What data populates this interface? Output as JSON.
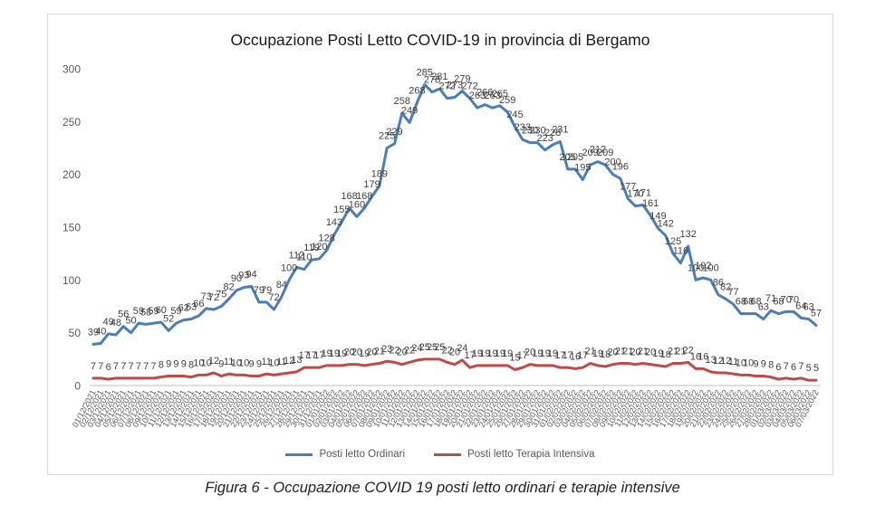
{
  "chart_data": {
    "type": "line",
    "title": "Occupazione Posti Letto COVID-19 in provincia di Bergamo",
    "ylim": [
      0,
      300
    ],
    "yticks": [
      0,
      50,
      100,
      150,
      200,
      250,
      300
    ],
    "grid": false,
    "legend": "bottom",
    "categories": [
      "01/12/2021",
      "02/12/2021",
      "03/12/2021",
      "04/12/2021",
      "05/12/2021",
      "06/12/2021",
      "07/12/2021",
      "08/12/2021",
      "09/12/2021",
      "10/12/2021",
      "11/12/2021",
      "12/12/2021",
      "13/12/2021",
      "14/12/2021",
      "15/12/2021",
      "16/12/2021",
      "17/12/2021",
      "18/12/2021",
      "19/12/2021",
      "20/12/2021",
      "21/12/2021",
      "22/12/2021",
      "23/12/2021",
      "24/12/2021",
      "25/12/2021",
      "26/12/2021",
      "27/12/2021",
      "28/12/2021",
      "29/12/2021",
      "30/12/2021",
      "31/12/2021",
      "01/01/2022",
      "02/01/2022",
      "03/01/2022",
      "04/01/2022",
      "05/01/2022",
      "06/01/2022",
      "07/01/2022",
      "08/01/2022",
      "09/01/2022",
      "10/01/2022",
      "11/01/2022",
      "12/01/2022",
      "13/01/2022",
      "14/01/2022",
      "15/01/2022",
      "16/01/2022",
      "17/01/2022",
      "18/01/2022",
      "19/01/2022",
      "20/01/2022",
      "21/01/2022",
      "22/01/2022",
      "23/01/2022",
      "24/01/2022",
      "25/01/2022",
      "26/01/2022",
      "27/01/2022",
      "28/01/2022",
      "29/01/2022",
      "30/01/2022",
      "31/01/2022",
      "01/02/2022",
      "02/02/2022",
      "03/02/2022",
      "04/02/2022",
      "05/02/2022",
      "06/02/2022",
      "07/02/2022",
      "08/02/2022",
      "09/02/2022",
      "10/02/2022",
      "11/02/2022",
      "12/02/2022",
      "13/02/2022",
      "14/02/2022",
      "15/02/2022",
      "16/02/2022",
      "17/02/2022",
      "18/02/2022",
      "19/02/2022",
      "20/02/2022",
      "21/02/2022",
      "22/02/2022",
      "23/02/2022",
      "24/02/2022",
      "25/02/2022",
      "26/02/2022",
      "27/02/2022",
      "28/02/2022",
      "01/03/2022",
      "02/03/2022",
      "03/03/2022",
      "04/03/2022",
      "05/03/2022",
      "06/03/2022",
      "07/03/2022"
    ],
    "series": [
      {
        "name": "Posti letto Ordinari",
        "color": "#4A7EBB",
        "values": [
          39,
          40,
          49,
          48,
          56,
          50,
          59,
          58,
          59,
          60,
          52,
          59,
          62,
          63,
          66,
          73,
          72,
          75,
          82,
          90,
          93,
          94,
          79,
          79,
          72,
          84,
          100,
          112,
          110,
          119,
          120,
          128,
          143,
          155,
          168,
          160,
          168,
          179,
          189,
          225,
          229,
          258,
          249,
          268,
          285,
          278,
          281,
          272,
          273,
          279,
          272,
          263,
          266,
          263,
          265,
          259,
          245,
          233,
          230,
          230,
          223,
          228,
          231,
          205,
          205,
          195,
          209,
          212,
          209,
          200,
          196,
          177,
          170,
          171,
          161,
          149,
          142,
          125,
          116,
          132,
          100,
          102,
          100,
          86,
          82,
          77,
          68,
          68,
          68,
          63,
          71,
          68,
          70,
          70,
          64,
          63,
          57
        ]
      },
      {
        "name": "Posti letto Terapia Intensiva",
        "color": "#BE4B48",
        "values": [
          7,
          7,
          6,
          7,
          7,
          7,
          7,
          7,
          7,
          8,
          9,
          9,
          9,
          8,
          10,
          10,
          12,
          9,
          11,
          10,
          10,
          9,
          9,
          11,
          10,
          11,
          12,
          13,
          17,
          17,
          17,
          19,
          19,
          19,
          20,
          20,
          19,
          20,
          21,
          23,
          22,
          20,
          22,
          24,
          25,
          25,
          25,
          22,
          20,
          24,
          17,
          19,
          19,
          19,
          19,
          19,
          15,
          17,
          20,
          19,
          19,
          19,
          17,
          17,
          16,
          17,
          21,
          19,
          18,
          20,
          21,
          21,
          20,
          21,
          20,
          19,
          18,
          21,
          21,
          22,
          16,
          16,
          13,
          12,
          12,
          11,
          10,
          10,
          9,
          9,
          8,
          6,
          7,
          6,
          7,
          5,
          5
        ]
      }
    ]
  },
  "caption": "Figura 6 - Occupazione COVID 19 posti letto ordinari e terapie intensive"
}
